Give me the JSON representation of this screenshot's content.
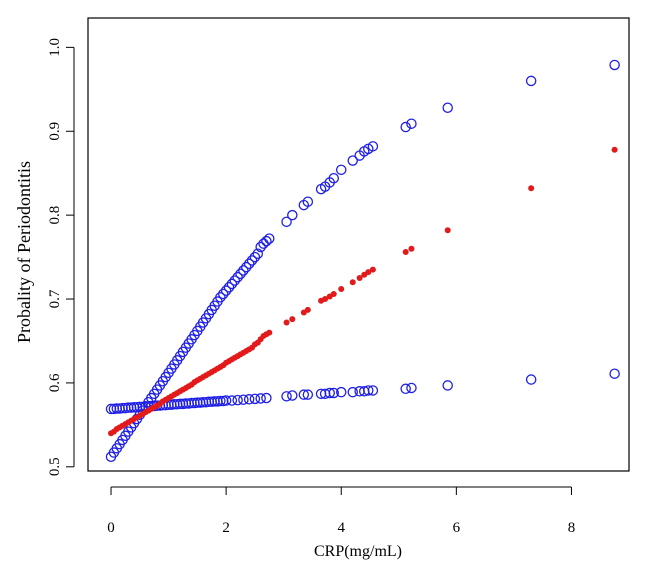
{
  "chart_data": {
    "type": "scatter",
    "title": "",
    "xlabel": "CRP(mg/mL)",
    "ylabel": "Probality of Periodontitis",
    "xlim": [
      -0.4,
      9.0
    ],
    "ylim": [
      0.495,
      1.035
    ],
    "xticks": [
      0,
      2,
      4,
      6,
      8
    ],
    "xtick_labels": [
      "0",
      "2",
      "4",
      "6",
      "8"
    ],
    "yticks": [
      0.5,
      0.6,
      0.7,
      0.8,
      0.9,
      1.0
    ],
    "ytick_labels": [
      "0.5",
      "0.6",
      "0.7",
      "0.8",
      "0.9",
      "1.0"
    ],
    "grid": false,
    "legend": "none",
    "series": [
      {
        "marker": "open-circle",
        "color": "#1f1fe6",
        "points": [
          [
            0.0,
            0.512
          ],
          [
            0.05,
            0.517
          ],
          [
            0.1,
            0.522
          ],
          [
            0.15,
            0.527
          ],
          [
            0.2,
            0.532
          ],
          [
            0.25,
            0.537
          ],
          [
            0.3,
            0.542
          ],
          [
            0.35,
            0.547
          ],
          [
            0.4,
            0.552
          ],
          [
            0.45,
            0.557
          ],
          [
            0.5,
            0.562
          ],
          [
            0.55,
            0.567
          ],
          [
            0.6,
            0.572
          ],
          [
            0.65,
            0.577
          ],
          [
            0.7,
            0.582
          ],
          [
            0.75,
            0.587
          ],
          [
            0.8,
            0.592
          ],
          [
            0.85,
            0.597
          ],
          [
            0.9,
            0.602
          ],
          [
            0.95,
            0.607
          ],
          [
            1.0,
            0.612
          ],
          [
            1.05,
            0.617
          ],
          [
            1.1,
            0.622
          ],
          [
            1.15,
            0.627
          ],
          [
            1.2,
            0.632
          ],
          [
            1.25,
            0.637
          ],
          [
            1.3,
            0.642
          ],
          [
            1.35,
            0.647
          ],
          [
            1.4,
            0.652
          ],
          [
            1.45,
            0.657
          ],
          [
            1.5,
            0.662
          ],
          [
            1.55,
            0.667
          ],
          [
            1.6,
            0.672
          ],
          [
            1.65,
            0.677
          ],
          [
            1.7,
            0.682
          ],
          [
            1.75,
            0.687
          ],
          [
            1.8,
            0.692
          ],
          [
            1.85,
            0.697
          ],
          [
            1.9,
            0.702
          ],
          [
            1.95,
            0.706
          ],
          [
            2.0,
            0.71
          ],
          [
            2.05,
            0.714
          ],
          [
            2.1,
            0.718
          ],
          [
            2.15,
            0.722
          ],
          [
            2.2,
            0.726
          ],
          [
            2.25,
            0.73
          ],
          [
            2.3,
            0.734
          ],
          [
            2.35,
            0.738
          ],
          [
            2.4,
            0.742
          ],
          [
            2.45,
            0.746
          ],
          [
            2.5,
            0.75
          ],
          [
            2.55,
            0.754
          ],
          [
            2.6,
            0.762
          ],
          [
            2.65,
            0.766
          ],
          [
            2.7,
            0.769
          ],
          [
            2.75,
            0.772
          ],
          [
            3.05,
            0.792
          ],
          [
            3.15,
            0.8
          ],
          [
            3.35,
            0.812
          ],
          [
            3.42,
            0.816
          ],
          [
            3.65,
            0.831
          ],
          [
            3.72,
            0.834
          ],
          [
            3.8,
            0.839
          ],
          [
            3.87,
            0.844
          ],
          [
            4.0,
            0.854
          ],
          [
            4.2,
            0.865
          ],
          [
            4.32,
            0.871
          ],
          [
            4.4,
            0.876
          ],
          [
            4.47,
            0.879
          ],
          [
            4.55,
            0.882
          ],
          [
            5.12,
            0.905
          ],
          [
            5.22,
            0.909
          ],
          [
            5.85,
            0.928
          ],
          [
            7.3,
            0.96
          ],
          [
            8.75,
            0.979
          ]
        ]
      },
      {
        "marker": "open-circle",
        "color": "#1f1fe6",
        "points": [
          [
            0.0,
            0.569
          ],
          [
            0.05,
            0.569
          ],
          [
            0.1,
            0.5695
          ],
          [
            0.15,
            0.5695
          ],
          [
            0.2,
            0.57
          ],
          [
            0.25,
            0.57
          ],
          [
            0.3,
            0.5705
          ],
          [
            0.35,
            0.5705
          ],
          [
            0.4,
            0.571
          ],
          [
            0.45,
            0.571
          ],
          [
            0.5,
            0.5715
          ],
          [
            0.55,
            0.5715
          ],
          [
            0.6,
            0.572
          ],
          [
            0.65,
            0.572
          ],
          [
            0.7,
            0.5725
          ],
          [
            0.75,
            0.5725
          ],
          [
            0.8,
            0.573
          ],
          [
            0.85,
            0.573
          ],
          [
            0.9,
            0.5735
          ],
          [
            0.95,
            0.5735
          ],
          [
            1.0,
            0.574
          ],
          [
            1.05,
            0.574
          ],
          [
            1.1,
            0.5745
          ],
          [
            1.15,
            0.5745
          ],
          [
            1.2,
            0.575
          ],
          [
            1.25,
            0.575
          ],
          [
            1.3,
            0.5755
          ],
          [
            1.35,
            0.5755
          ],
          [
            1.4,
            0.576
          ],
          [
            1.45,
            0.576
          ],
          [
            1.5,
            0.5765
          ],
          [
            1.55,
            0.5765
          ],
          [
            1.6,
            0.577
          ],
          [
            1.65,
            0.577
          ],
          [
            1.7,
            0.5775
          ],
          [
            1.75,
            0.5775
          ],
          [
            1.8,
            0.578
          ],
          [
            1.85,
            0.578
          ],
          [
            1.9,
            0.5785
          ],
          [
            1.95,
            0.5785
          ],
          [
            2.0,
            0.579
          ],
          [
            2.1,
            0.579
          ],
          [
            2.2,
            0.5795
          ],
          [
            2.3,
            0.58
          ],
          [
            2.4,
            0.5805
          ],
          [
            2.5,
            0.581
          ],
          [
            2.6,
            0.5815
          ],
          [
            2.7,
            0.582
          ],
          [
            3.05,
            0.584
          ],
          [
            3.15,
            0.585
          ],
          [
            3.35,
            0.586
          ],
          [
            3.42,
            0.586
          ],
          [
            3.65,
            0.587
          ],
          [
            3.72,
            0.587
          ],
          [
            3.8,
            0.588
          ],
          [
            3.87,
            0.588
          ],
          [
            4.0,
            0.589
          ],
          [
            4.2,
            0.589
          ],
          [
            4.32,
            0.59
          ],
          [
            4.4,
            0.59
          ],
          [
            4.47,
            0.591
          ],
          [
            4.55,
            0.591
          ],
          [
            5.12,
            0.593
          ],
          [
            5.22,
            0.594
          ],
          [
            5.85,
            0.597
          ],
          [
            7.3,
            0.604
          ],
          [
            8.75,
            0.611
          ]
        ]
      },
      {
        "marker": "filled-dot",
        "color": "#e31a1a",
        "points": [
          [
            0.0,
            0.54
          ],
          [
            0.05,
            0.542
          ],
          [
            0.1,
            0.545
          ],
          [
            0.15,
            0.547
          ],
          [
            0.2,
            0.549
          ],
          [
            0.25,
            0.551
          ],
          [
            0.3,
            0.553
          ],
          [
            0.35,
            0.555
          ],
          [
            0.4,
            0.557
          ],
          [
            0.45,
            0.559
          ],
          [
            0.5,
            0.561
          ],
          [
            0.55,
            0.563
          ],
          [
            0.6,
            0.565
          ],
          [
            0.65,
            0.567
          ],
          [
            0.7,
            0.569
          ],
          [
            0.75,
            0.571
          ],
          [
            0.8,
            0.573
          ],
          [
            0.85,
            0.575
          ],
          [
            0.9,
            0.578
          ],
          [
            0.95,
            0.58
          ],
          [
            1.0,
            0.582
          ],
          [
            1.05,
            0.584
          ],
          [
            1.1,
            0.586
          ],
          [
            1.15,
            0.588
          ],
          [
            1.2,
            0.59
          ],
          [
            1.25,
            0.592
          ],
          [
            1.3,
            0.594
          ],
          [
            1.35,
            0.596
          ],
          [
            1.4,
            0.598
          ],
          [
            1.45,
            0.601
          ],
          [
            1.5,
            0.603
          ],
          [
            1.55,
            0.605
          ],
          [
            1.6,
            0.607
          ],
          [
            1.65,
            0.609
          ],
          [
            1.7,
            0.611
          ],
          [
            1.75,
            0.613
          ],
          [
            1.8,
            0.615
          ],
          [
            1.85,
            0.617
          ],
          [
            1.9,
            0.619
          ],
          [
            1.95,
            0.621
          ],
          [
            2.0,
            0.624
          ],
          [
            2.05,
            0.626
          ],
          [
            2.1,
            0.628
          ],
          [
            2.15,
            0.63
          ],
          [
            2.2,
            0.632
          ],
          [
            2.25,
            0.634
          ],
          [
            2.3,
            0.636
          ],
          [
            2.35,
            0.638
          ],
          [
            2.4,
            0.64
          ],
          [
            2.45,
            0.642
          ],
          [
            2.5,
            0.646
          ],
          [
            2.55,
            0.648
          ],
          [
            2.6,
            0.652
          ],
          [
            2.65,
            0.656
          ],
          [
            2.7,
            0.658
          ],
          [
            2.75,
            0.66
          ],
          [
            3.05,
            0.672
          ],
          [
            3.15,
            0.676
          ],
          [
            3.35,
            0.684
          ],
          [
            3.42,
            0.687
          ],
          [
            3.65,
            0.698
          ],
          [
            3.72,
            0.7
          ],
          [
            3.8,
            0.703
          ],
          [
            3.87,
            0.706
          ],
          [
            4.0,
            0.712
          ],
          [
            4.2,
            0.72
          ],
          [
            4.32,
            0.725
          ],
          [
            4.4,
            0.729
          ],
          [
            4.47,
            0.732
          ],
          [
            4.55,
            0.735
          ],
          [
            5.12,
            0.756
          ],
          [
            5.22,
            0.76
          ],
          [
            5.85,
            0.782
          ],
          [
            7.3,
            0.832
          ],
          [
            8.75,
            0.878
          ]
        ]
      }
    ]
  }
}
